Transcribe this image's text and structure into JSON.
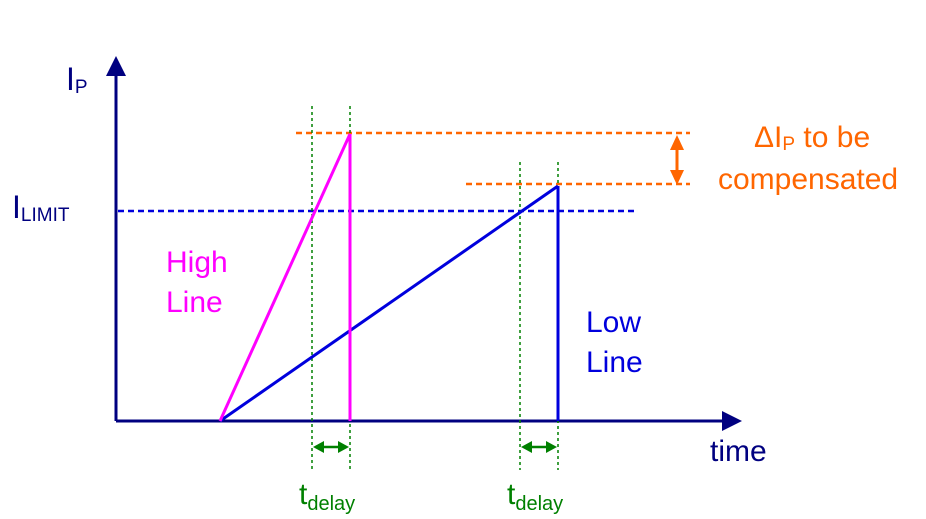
{
  "colors": {
    "axis": "#000080",
    "high_line": "#ff00ff",
    "low_line": "#0000dd",
    "limit": "#0000dd",
    "compensation": "#ff6600",
    "delay": "#008000"
  },
  "labels": {
    "y_axis_main": "I",
    "y_axis_sub": "P",
    "x_axis": "time",
    "limit_main": "I",
    "limit_sub": "LIMIT",
    "high_line_1": "High",
    "high_line_2": "Line",
    "low_line_1": "Low",
    "low_line_2": "Line",
    "delta_symbol": "Δ",
    "delta_main": "I",
    "delta_sub": "P",
    "delta_rest": " to be",
    "compensated": "compensated",
    "t_delay_main": "t",
    "t_delay_sub": "delay"
  },
  "icons": {
    "axis_arrowheads": "arrowhead-icon",
    "delay_arrows": "double-arrow-icon",
    "delta_arrow": "double-arrow-icon"
  }
}
